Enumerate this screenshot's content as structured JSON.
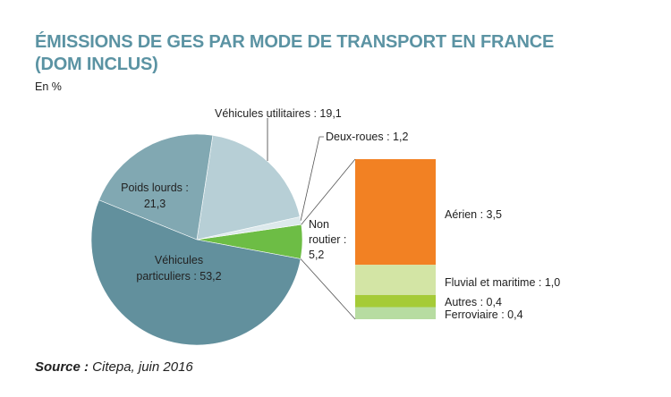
{
  "chart_data": {
    "type": "pie",
    "title_line1": "ÉMISSIONS DE GES PAR MODE DE TRANSPORT EN FRANCE",
    "title_line2": "(DOM INCLUS)",
    "unit": "En %",
    "slices": [
      {
        "name": "Non routier",
        "value": 5.2,
        "label": [
          "Non",
          "routier :",
          "5,2"
        ],
        "color": "#6dbd45"
      },
      {
        "name": "Deux-roues",
        "value": 1.2,
        "label": [
          "Deux-roues : 1,2"
        ],
        "color": "#dde9ec"
      },
      {
        "name": "Véhicules utilitaires",
        "value": 19.1,
        "label": [
          "Véhicules utilitaires : 19,1"
        ],
        "color": "#b7cfd6"
      },
      {
        "name": "Poids lourds",
        "value": 21.3,
        "label": [
          "Poids lourds :",
          "21,3"
        ],
        "color": "#81a8b2"
      },
      {
        "name": "Véhicules particuliers",
        "value": 53.2,
        "label": [
          "Véhicules",
          "particuliers : 53,2"
        ],
        "color": "#62909d"
      }
    ],
    "breakdown": {
      "parent": "Non routier",
      "segments": [
        {
          "name": "Aérien",
          "value": 3.5,
          "label": "Aérien : 3,5",
          "color": "#f28123"
        },
        {
          "name": "Fluvial et maritime",
          "value": 1.0,
          "label": "Fluvial et maritime : 1,0",
          "color": "#d3e5a5"
        },
        {
          "name": "Autres",
          "value": 0.4,
          "label": "Autres : 0,4",
          "color": "#a5cb37"
        },
        {
          "name": "Ferroviaire",
          "value": 0.4,
          "label": "Ferroviaire : 0,4",
          "color": "#b7dca1"
        }
      ]
    }
  },
  "source": {
    "label": "Source :",
    "text": " Citepa, juin 2016"
  }
}
